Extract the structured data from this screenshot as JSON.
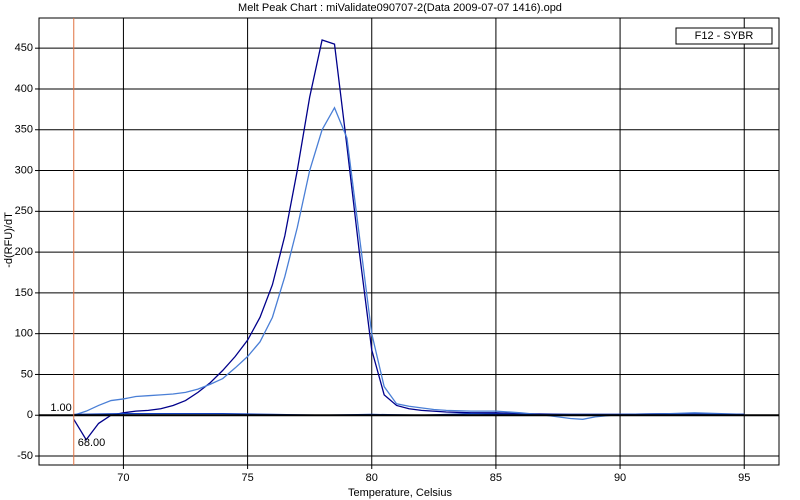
{
  "chart_data": {
    "type": "line",
    "title": "Melt Peak Chart : miValidate090707-2(Data 2009-07-07 1416).opd",
    "x_label": "Temperature, Celsius",
    "y_label": "-d(RFU)/dT",
    "legend_label": "F12 - SYBR",
    "xlim": [
      66.6,
      96.4
    ],
    "ylim": [
      -61,
      487
    ],
    "xticks": [
      70,
      75,
      80,
      85,
      90,
      95
    ],
    "yticks": [
      -50,
      0,
      50,
      100,
      150,
      200,
      250,
      300,
      350,
      400,
      450
    ],
    "grid": true,
    "threshold": 0,
    "marker": {
      "x": 68,
      "labels": [
        "1.00",
        "68.00"
      ],
      "color": "#e07040"
    },
    "series": [
      {
        "color": "#00008b",
        "x": [
          68,
          68.5,
          69,
          69.5,
          70,
          70.5,
          71,
          71.5,
          72,
          72.5,
          73,
          73.5,
          74,
          74.5,
          75,
          75.5,
          76,
          76.5,
          77,
          77.5,
          78,
          78.5,
          79,
          79.5,
          80,
          80.5,
          81,
          81.5,
          82,
          83,
          84,
          85,
          86,
          88,
          90,
          92,
          95
        ],
        "values": [
          -5,
          -30,
          -10,
          0,
          3,
          5,
          6,
          8,
          12,
          18,
          28,
          40,
          55,
          72,
          92,
          120,
          160,
          220,
          300,
          390,
          460,
          455,
          330,
          200,
          80,
          25,
          12,
          8,
          6,
          4,
          3,
          3,
          2,
          1,
          1,
          2,
          1
        ]
      },
      {
        "color": "#4a7fd6",
        "x": [
          68,
          68.5,
          69,
          69.5,
          70,
          70.5,
          71,
          71.5,
          72,
          72.5,
          73,
          73.5,
          74,
          74.5,
          75,
          75.5,
          76,
          76.5,
          77,
          77.5,
          78,
          78.5,
          79,
          79.5,
          80,
          80.5,
          81,
          81.5,
          82,
          82.5,
          83,
          84,
          85,
          86,
          87,
          88,
          88.5,
          89,
          90,
          92,
          93,
          95
        ],
        "values": [
          0,
          5,
          12,
          18,
          20,
          23,
          24,
          25,
          26,
          28,
          32,
          38,
          45,
          58,
          72,
          90,
          120,
          170,
          230,
          300,
          350,
          377,
          340,
          220,
          100,
          35,
          14,
          11,
          9,
          7,
          6,
          5,
          5,
          3,
          0,
          -4,
          -5,
          -2,
          1,
          2,
          3,
          1
        ]
      },
      {
        "color": "#1040c0",
        "x": [
          68,
          70,
          72,
          74,
          76,
          78,
          80,
          82,
          84,
          86,
          88,
          90,
          92,
          95
        ],
        "values": [
          1,
          2,
          2,
          2,
          1,
          0,
          1,
          0,
          2,
          1,
          1,
          1,
          1,
          1
        ]
      }
    ]
  }
}
